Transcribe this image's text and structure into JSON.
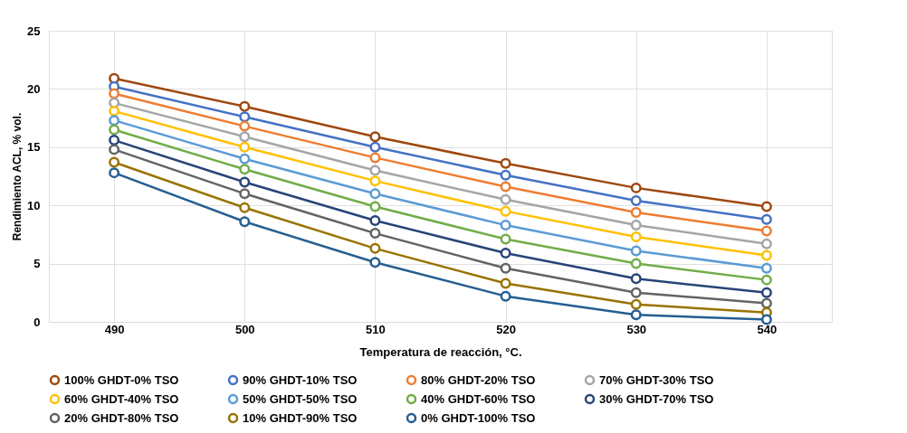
{
  "chart_data": {
    "type": "line",
    "xlabel": "Temperatura de reacción, °C.",
    "ylabel": "Rendimiento ACL, % vol.",
    "categories": [
      "490",
      "500",
      "510",
      "520",
      "530",
      "540"
    ],
    "ylim": [
      0,
      25
    ],
    "yticks": [
      0,
      5,
      10,
      15,
      20,
      25
    ],
    "grid": true,
    "legend": "bottom",
    "marker": "circle",
    "line_style": "solid",
    "series": [
      {
        "name": "100% GHDT-0% TSO",
        "color": "#9e480e",
        "values": [
          20.9,
          18.5,
          15.9,
          13.6,
          11.5,
          9.9
        ]
      },
      {
        "name": "90% GHDT-10% TSO",
        "color": "#4472c4",
        "values": [
          20.2,
          17.6,
          15.0,
          12.6,
          10.4,
          8.8
        ]
      },
      {
        "name": "80% GHDT-20% TSO",
        "color": "#ed7d31",
        "values": [
          19.6,
          16.8,
          14.1,
          11.6,
          9.4,
          7.8
        ]
      },
      {
        "name": "70% GHDT-30% TSO",
        "color": "#a5a5a5",
        "values": [
          18.8,
          15.9,
          13.0,
          10.5,
          8.3,
          6.7
        ]
      },
      {
        "name": "60% GHDT-40% TSO",
        "color": "#ffc000",
        "values": [
          18.1,
          15.0,
          12.1,
          9.5,
          7.3,
          5.7
        ]
      },
      {
        "name": "50% GHDT-50% TSO",
        "color": "#5b9bd5",
        "values": [
          17.3,
          14.0,
          11.0,
          8.3,
          6.1,
          4.6
        ]
      },
      {
        "name": "40% GHDT-60% TSO",
        "color": "#70ad47",
        "values": [
          16.5,
          13.1,
          9.9,
          7.1,
          5.0,
          3.6
        ]
      },
      {
        "name": "30% GHDT-70% TSO",
        "color": "#264478",
        "values": [
          15.6,
          12.0,
          8.7,
          5.9,
          3.7,
          2.5
        ]
      },
      {
        "name": "20% GHDT-80% TSO",
        "color": "#636363",
        "values": [
          14.8,
          11.0,
          7.6,
          4.6,
          2.5,
          1.6
        ]
      },
      {
        "name": "10% GHDT-90% TSO",
        "color": "#997300",
        "values": [
          13.7,
          9.8,
          6.3,
          3.3,
          1.5,
          0.8
        ]
      },
      {
        "name": "0% GHDT-100% TSO",
        "color": "#255e91",
        "values": [
          12.8,
          8.6,
          5.1,
          2.2,
          0.6,
          0.2
        ]
      }
    ]
  }
}
